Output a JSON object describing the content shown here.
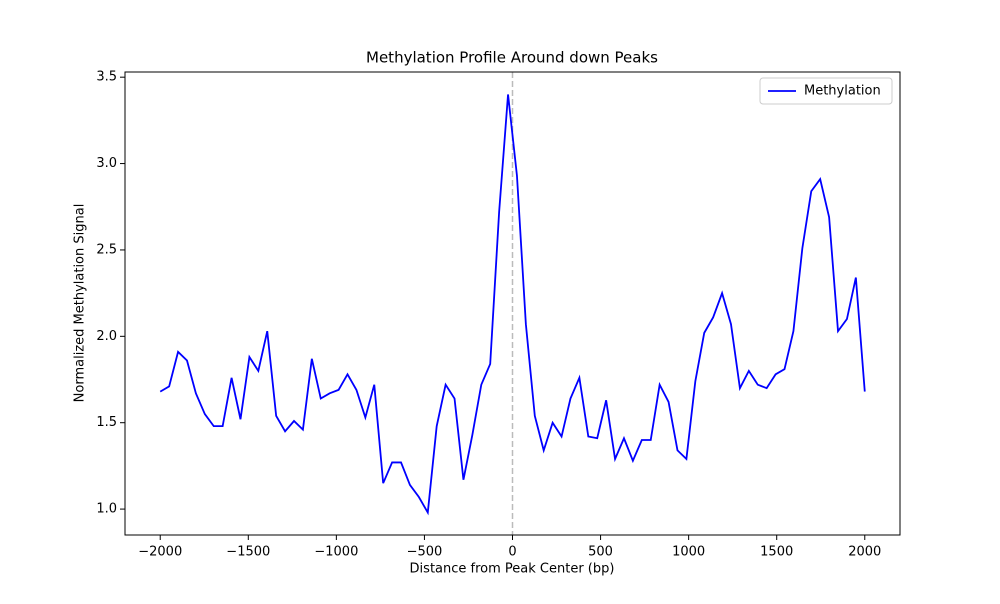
{
  "chart_data": {
    "type": "line",
    "title": "Methylation Profile Around down Peaks",
    "x_label": "Distance from Peak Center (bp)",
    "y_label": "Normalized Methylation Signal",
    "x": [
      -2000,
      -1949.4,
      -1898.7,
      -1848.1,
      -1797.5,
      -1746.8,
      -1696.2,
      -1645.6,
      -1594.9,
      -1544.3,
      -1493.7,
      -1443.0,
      -1392.4,
      -1341.8,
      -1291.1,
      -1240.5,
      -1189.9,
      -1139.2,
      -1088.6,
      -1038.0,
      -987.3,
      -936.7,
      -886.1,
      -835.4,
      -784.8,
      -734.2,
      -683.5,
      -632.9,
      -582.3,
      -531.6,
      -481.0,
      -430.4,
      -379.7,
      -329.1,
      -278.5,
      -227.8,
      -177.2,
      -126.6,
      -75.9,
      -25.3,
      25.3,
      75.9,
      126.6,
      177.2,
      227.8,
      278.5,
      329.1,
      379.7,
      430.4,
      481.0,
      531.6,
      582.3,
      632.9,
      683.5,
      734.2,
      784.8,
      835.4,
      886.1,
      936.7,
      987.3,
      1038.0,
      1088.6,
      1139.2,
      1189.9,
      1240.5,
      1291.1,
      1341.8,
      1392.4,
      1443.0,
      1493.7,
      1544.3,
      1594.9,
      1645.6,
      1696.2,
      1746.8,
      1797.5,
      1848.1,
      1898.7,
      1949.4,
      2000
    ],
    "series": [
      {
        "name": "Methylation",
        "color": "#0000ff",
        "values": [
          1.68,
          1.71,
          1.91,
          1.86,
          1.67,
          1.55,
          1.48,
          1.48,
          1.76,
          1.52,
          1.88,
          1.8,
          2.03,
          1.54,
          1.45,
          1.51,
          1.46,
          1.87,
          1.64,
          1.67,
          1.69,
          1.78,
          1.69,
          1.53,
          1.72,
          1.15,
          1.27,
          1.27,
          1.14,
          1.07,
          0.98,
          1.48,
          1.72,
          1.64,
          1.17,
          1.43,
          1.72,
          1.84,
          2.72,
          3.4,
          2.93,
          2.07,
          1.54,
          1.34,
          1.5,
          1.42,
          1.64,
          1.76,
          1.42,
          1.41,
          1.63,
          1.29,
          1.41,
          1.28,
          1.4,
          1.4,
          1.72,
          1.62,
          1.34,
          1.29,
          1.74,
          2.02,
          2.11,
          2.25,
          2.07,
          1.7,
          1.8,
          1.72,
          1.7,
          1.78,
          1.81,
          2.03,
          2.51,
          2.84,
          2.91,
          2.69,
          2.03,
          2.1,
          2.34,
          1.68
        ]
      }
    ],
    "vline": 0,
    "vline_color": "#bbbbbb",
    "xlim": [
      -2200,
      2200
    ],
    "ylim": [
      0.85,
      3.53
    ],
    "xticks": [
      {
        "value": -2000,
        "label": "−2000"
      },
      {
        "value": -1500,
        "label": "−1500"
      },
      {
        "value": -1000,
        "label": "−1000"
      },
      {
        "value": -500,
        "label": "−500"
      },
      0,
      500,
      1000,
      1500,
      2000
    ],
    "yticks": [
      {
        "value": 1,
        "label": "1.0"
      },
      1.5,
      {
        "value": 2,
        "label": "2.0"
      },
      2.5,
      {
        "value": 3,
        "label": "3.0"
      },
      3.5
    ],
    "grid": false,
    "legend": "upper right"
  }
}
